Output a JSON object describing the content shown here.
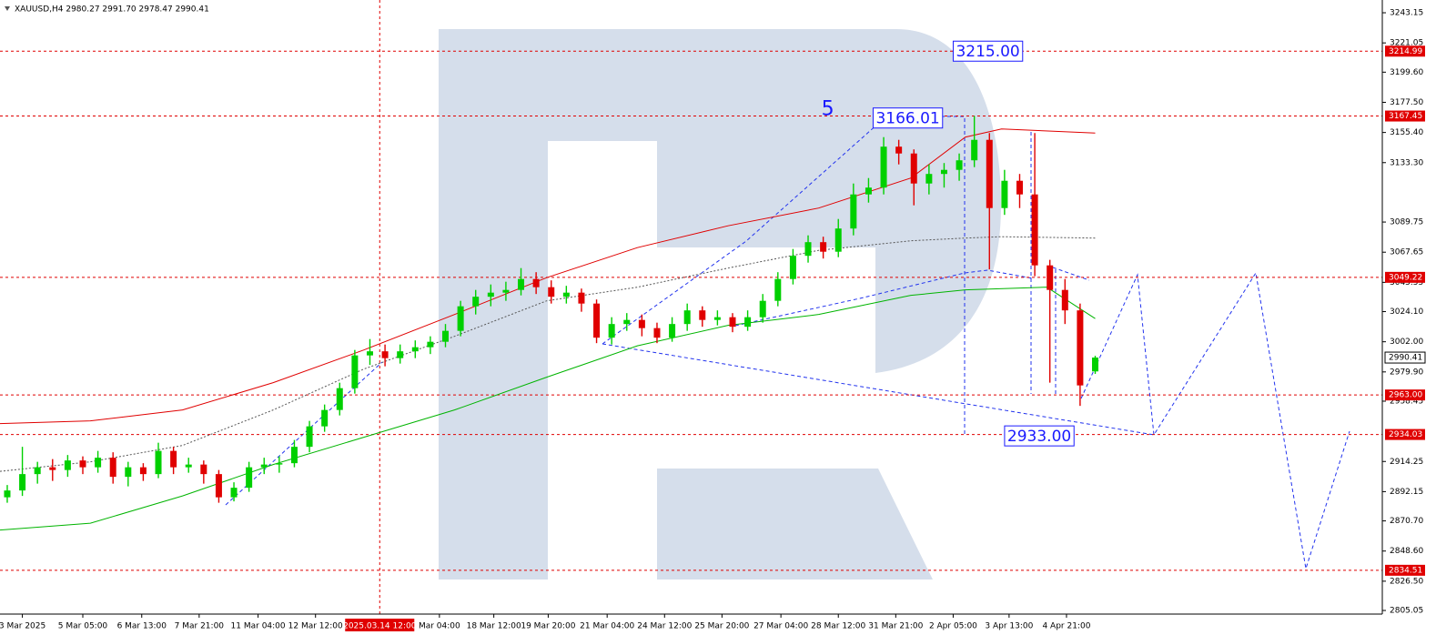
{
  "chart_data": {
    "type": "candlestick",
    "title": "XAUUSD,H4  2980.27 2991.70 2978.47 2990.41",
    "up_color": "#00d000",
    "down_color": "#e00000",
    "xlim": [
      -0.48,
      91.0
    ],
    "ylim": [
      2802.4,
      3252.5
    ],
    "ohlc": [
      [
        2888,
        2897,
        2884,
        2893
      ],
      [
        2893,
        2925,
        2889,
        2905
      ],
      [
        2905,
        2914,
        2898,
        2910
      ],
      [
        2910,
        2916,
        2900,
        2908
      ],
      [
        2908,
        2919,
        2903,
        2915
      ],
      [
        2915,
        2918,
        2905,
        2910
      ],
      [
        2910,
        2922,
        2906,
        2917
      ],
      [
        2917,
        2921,
        2898,
        2903
      ],
      [
        2903,
        2914,
        2896,
        2910
      ],
      [
        2910,
        2913,
        2900,
        2905
      ],
      [
        2905,
        2928,
        2902,
        2922
      ],
      [
        2922,
        2925,
        2905,
        2910
      ],
      [
        2910,
        2917,
        2906,
        2912
      ],
      [
        2912,
        2915,
        2898,
        2905
      ],
      [
        2905,
        2908,
        2884,
        2888
      ],
      [
        2888,
        2899,
        2885,
        2895
      ],
      [
        2895,
        2914,
        2892,
        2910
      ],
      [
        2910,
        2917,
        2905,
        2912
      ],
      [
        2912,
        2918,
        2906,
        2913
      ],
      [
        2913,
        2930,
        2910,
        2925
      ],
      [
        2925,
        2944,
        2921,
        2940
      ],
      [
        2940,
        2956,
        2936,
        2952
      ],
      [
        2952,
        2972,
        2948,
        2968
      ],
      [
        2968,
        2996,
        2964,
        2992
      ],
      [
        2992,
        3004,
        2985,
        2995
      ],
      [
        2995,
        3000,
        2984,
        2990
      ],
      [
        2990,
        3000,
        2986,
        2995
      ],
      [
        2995,
        3003,
        2990,
        2998
      ],
      [
        2998,
        3006,
        2993,
        3002
      ],
      [
        3002,
        3015,
        2998,
        3010
      ],
      [
        3010,
        3032,
        3006,
        3028
      ],
      [
        3028,
        3040,
        3022,
        3035
      ],
      [
        3035,
        3044,
        3028,
        3038
      ],
      [
        3038,
        3046,
        3032,
        3040
      ],
      [
        3040,
        3056,
        3036,
        3048
      ],
      [
        3048,
        3053,
        3037,
        3042
      ],
      [
        3042,
        3047,
        3030,
        3035
      ],
      [
        3035,
        3043,
        3030,
        3038
      ],
      [
        3038,
        3041,
        3024,
        3030
      ],
      [
        3030,
        3033,
        3001,
        3005
      ],
      [
        3005,
        3020,
        3000,
        3015
      ],
      [
        3015,
        3023,
        3010,
        3018
      ],
      [
        3018,
        3022,
        3006,
        3012
      ],
      [
        3012,
        3016,
        3001,
        3005
      ],
      [
        3005,
        3020,
        3002,
        3015
      ],
      [
        3015,
        3030,
        3010,
        3025
      ],
      [
        3025,
        3028,
        3013,
        3018
      ],
      [
        3018,
        3025,
        3014,
        3020
      ],
      [
        3020,
        3023,
        3009,
        3013
      ],
      [
        3013,
        3025,
        3010,
        3020
      ],
      [
        3020,
        3037,
        3016,
        3032
      ],
      [
        3032,
        3053,
        3028,
        3048
      ],
      [
        3048,
        3070,
        3044,
        3065
      ],
      [
        3065,
        3080,
        3060,
        3075
      ],
      [
        3075,
        3079,
        3063,
        3068
      ],
      [
        3068,
        3092,
        3064,
        3085
      ],
      [
        3085,
        3118,
        3080,
        3110
      ],
      [
        3110,
        3122,
        3104,
        3115
      ],
      [
        3115,
        3152,
        3110,
        3145
      ],
      [
        3145,
        3150,
        3132,
        3140
      ],
      [
        3140,
        3143,
        3102,
        3118
      ],
      [
        3118,
        3132,
        3110,
        3125
      ],
      [
        3125,
        3133,
        3115,
        3128
      ],
      [
        3128,
        3140,
        3120,
        3135
      ],
      [
        3135,
        3167.45,
        3130,
        3150
      ],
      [
        3150,
        3155,
        3055,
        3100
      ],
      [
        3100,
        3128,
        3095,
        3120
      ],
      [
        3120,
        3125,
        3100,
        3110
      ],
      [
        3110,
        3155,
        3050,
        3058
      ],
      [
        3058,
        3062,
        2972,
        3040
      ],
      [
        3040,
        3048,
        3015,
        3025
      ],
      [
        3025,
        3030,
        2955,
        2970
      ],
      [
        2980.27,
        2991.7,
        2978.47,
        2990.41
      ]
    ],
    "series": [
      {
        "color": "#e00000",
        "x": [
          -0.48,
          5.5,
          11.6,
          17.6,
          23.6,
          29.6,
          35.7,
          41.7,
          47.7,
          53.7,
          59.8,
          63.4,
          65.8,
          72
        ],
        "values": [
          2942,
          2944,
          2952,
          2972,
          2996,
          3022,
          3049,
          3071,
          3087,
          3100,
          3122,
          3152,
          3158,
          3155
        ]
      },
      {
        "color": "#00b400",
        "x": [
          -0.48,
          5.5,
          11.6,
          17.6,
          23.6,
          29.6,
          35.7,
          41.7,
          47.7,
          53.7,
          59.8,
          63.4,
          68.8,
          72
        ],
        "values": [
          2864,
          2869,
          2889,
          2912,
          2932,
          2952,
          2976,
          2999,
          3014,
          3022,
          3036,
          3040,
          3042,
          3019
        ]
      },
      {
        "color": "#555555",
        "dashed": true,
        "x": [
          -0.48,
          5.5,
          11.6,
          17.6,
          23.6,
          29.6,
          35.7,
          41.7,
          47.7,
          53.7,
          59.8,
          63.4,
          65.8,
          72
        ],
        "values": [
          2907,
          2914,
          2926,
          2952,
          2982,
          3006,
          3032,
          3042,
          3056,
          3069,
          3076,
          3078,
          3079,
          3078
        ]
      }
    ],
    "yticks": [
      {
        "value": 3243.15,
        "label": "3243.15"
      },
      {
        "value": 3221.05,
        "label": "3221.05"
      },
      {
        "value": 3199.6,
        "label": "3199.60"
      },
      {
        "value": 3177.5,
        "label": "3177.50"
      },
      {
        "value": 3155.4,
        "label": "3155.40"
      },
      {
        "value": 3133.3,
        "label": "3133.30"
      },
      {
        "value": 3089.75,
        "label": "3089.75"
      },
      {
        "value": 3067.65,
        "label": "3067.65"
      },
      {
        "value": 3045.55,
        "label": "3045.55"
      },
      {
        "value": 3024.1,
        "label": "3024.10"
      },
      {
        "value": 3002.0,
        "label": "3002.00"
      },
      {
        "value": 2979.9,
        "label": "2979.90"
      },
      {
        "value": 2958.45,
        "label": "2958.45"
      },
      {
        "value": 2914.25,
        "label": "2914.25"
      },
      {
        "value": 2892.15,
        "label": "2892.15"
      },
      {
        "value": 2870.7,
        "label": "2870.70"
      },
      {
        "value": 2848.6,
        "label": "2848.60"
      },
      {
        "value": 2826.5,
        "label": "2826.50"
      },
      {
        "value": 2805.05,
        "label": "2805.05"
      }
    ],
    "xticks": [
      {
        "value": 1.0,
        "label": "3 Mar 2025"
      },
      {
        "value": 5.0,
        "label": "5 Mar 05:00"
      },
      {
        "value": 8.9,
        "label": "6 Mar 13:00"
      },
      {
        "value": 12.7,
        "label": "7 Mar 21:00"
      },
      {
        "value": 16.6,
        "label": "11 Mar 04:00"
      },
      {
        "value": 20.4,
        "label": "12 Mar 12:00"
      },
      {
        "value": 28.6,
        "label": "Mar 04:00"
      },
      {
        "value": 32.2,
        "label": "18 Mar 12:00"
      },
      {
        "value": 35.8,
        "label": "19 Mar 20:00"
      },
      {
        "value": 39.7,
        "label": "21 Mar 04:00"
      },
      {
        "value": 43.5,
        "label": "24 Mar 12:00"
      },
      {
        "value": 47.3,
        "label": "25 Mar 20:00"
      },
      {
        "value": 51.2,
        "label": "27 Mar 04:00"
      },
      {
        "value": 55.0,
        "label": "28 Mar 12:00"
      },
      {
        "value": 58.8,
        "label": "31 Mar 21:00"
      },
      {
        "value": 62.6,
        "label": "2 Apr 05:00"
      },
      {
        "value": 66.3,
        "label": "3 Apr 13:00"
      },
      {
        "value": 70.1,
        "label": "4 Apr 21:00"
      }
    ],
    "vline": {
      "value": 24.65,
      "label": "2025.03.14 12:00"
    },
    "levels": [
      {
        "value": 3214.99,
        "label": "3214.99"
      },
      {
        "value": 3167.45,
        "label": "3167.45"
      },
      {
        "value": 3049.22,
        "label": "3049.22"
      },
      {
        "value": 2963.0,
        "label": "2963.00"
      },
      {
        "value": 2934.03,
        "label": "2934.03"
      },
      {
        "value": 2834.51,
        "label": "2834.51"
      }
    ],
    "annotations": [
      {
        "x": 64.9,
        "y": 3215.0,
        "label": "3215.00"
      },
      {
        "x": 59.6,
        "y": 3166.01,
        "label": "3166.01"
      },
      {
        "x": 68.3,
        "y": 2933.0,
        "label": "2933.00"
      }
    ],
    "wave_label": {
      "x": 54.3,
      "y": 3172,
      "label": "5"
    }
  }
}
